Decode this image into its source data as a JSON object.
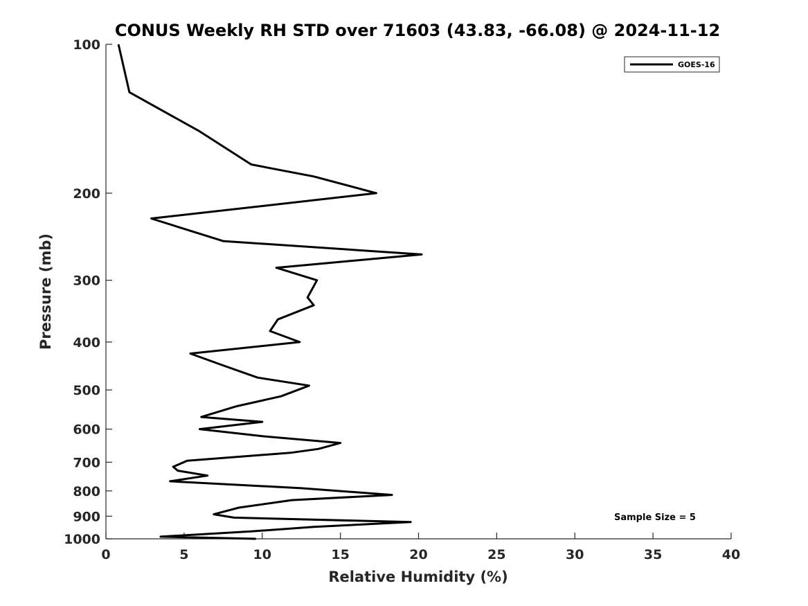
{
  "chart_data": {
    "type": "line",
    "title": "CONUS Weekly RH STD over 71603 (43.83, -66.08) @ 2024-11-12",
    "xlabel": "Relative Humidity (%)",
    "ylabel": "Pressure (mb)",
    "xlim": [
      0,
      40
    ],
    "ylim": [
      100,
      1000
    ],
    "y_scale": "log",
    "y_direction": "reversed",
    "x_ticks": [
      "0",
      "5",
      "10",
      "15",
      "20",
      "25",
      "30",
      "35",
      "40"
    ],
    "y_ticks": [
      "100",
      "200",
      "300",
      "400",
      "500",
      "600",
      "700",
      "800",
      "900",
      "1000"
    ],
    "grid": false,
    "legend_position": "top-right",
    "series": [
      {
        "name": "GOES-16",
        "color": "#000000",
        "x": [
          0.8,
          1.5,
          6.0,
          9.3,
          13.3,
          17.3,
          2.9,
          7.5,
          20.2,
          10.9,
          13.5,
          12.9,
          13.3,
          11.0,
          10.5,
          12.4,
          5.4,
          7.4,
          9.7,
          13.0,
          11.2,
          8.3,
          6.1,
          10.0,
          6.0,
          10.0,
          15.0,
          13.6,
          11.8,
          5.2,
          4.3,
          4.6,
          6.5,
          4.1,
          12.5,
          18.3,
          11.9,
          8.5,
          6.9,
          8.2,
          19.5,
          13.3,
          9.3,
          3.5,
          9.6
        ],
        "y": [
          100,
          125,
          150,
          175,
          185,
          200,
          225,
          250,
          266,
          283,
          300,
          325,
          337,
          360,
          380,
          400,
          422,
          445,
          472,
          490,
          515,
          540,
          567,
          580,
          600,
          620,
          640,
          658,
          670,
          695,
          715,
          728,
          745,
          765,
          790,
          815,
          835,
          865,
          892,
          906,
          925,
          946,
          966,
          990,
          1000
        ]
      }
    ],
    "annotations": [
      "Sample Size = 5"
    ]
  }
}
